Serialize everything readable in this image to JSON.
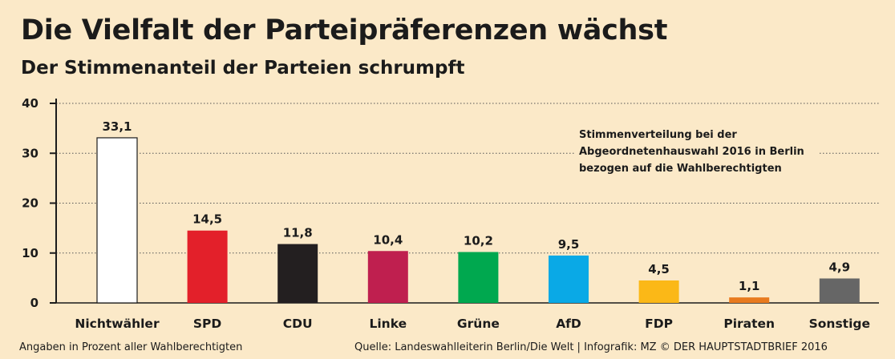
{
  "header": {
    "title": "Die Vielfalt der Parteipräferenzen wächst",
    "subtitle": "Der Stimmenanteil der Parteien schrumpft"
  },
  "chart_data": {
    "type": "bar",
    "title": "Die Vielfalt der Parteipräferenzen wächst",
    "subtitle": "Der Stimmenanteil der Parteien schrumpft",
    "categories": [
      "Nichtwähler",
      "SPD",
      "CDU",
      "Linke",
      "Grüne",
      "AfD",
      "FDP",
      "Piraten",
      "Sonstige"
    ],
    "values": [
      33.1,
      14.5,
      11.8,
      10.4,
      10.2,
      9.5,
      4.5,
      1.1,
      4.9
    ],
    "value_labels": [
      "33,1",
      "14,5",
      "11,8",
      "10,4",
      "10,2",
      "9,5",
      "4,5",
      "1,1",
      "4,9"
    ],
    "colors": [
      "#ffffff",
      "#e3202a",
      "#231f20",
      "#bf1f4f",
      "#00a84f",
      "#0aa9e6",
      "#fbb817",
      "#e87a1e",
      "#666666"
    ],
    "yticks": [
      0,
      10,
      20,
      30,
      40
    ],
    "ylim": [
      0,
      40
    ],
    "xlabel": "",
    "ylabel": "",
    "grid": true,
    "annotation": [
      "Stimmenverteilung bei der",
      "Abgeordnetenhauswahl 2016 in Berlin",
      "bezogen auf die Wahlberechtigten"
    ]
  },
  "footer": {
    "note": "Angaben in Prozent aller Wahlberechtigten",
    "source": "Quelle: Landeswahlleiterin Berlin/Die Welt  |  Infografik: MZ © DER HAUPTSTADTBRIEF 2016"
  }
}
